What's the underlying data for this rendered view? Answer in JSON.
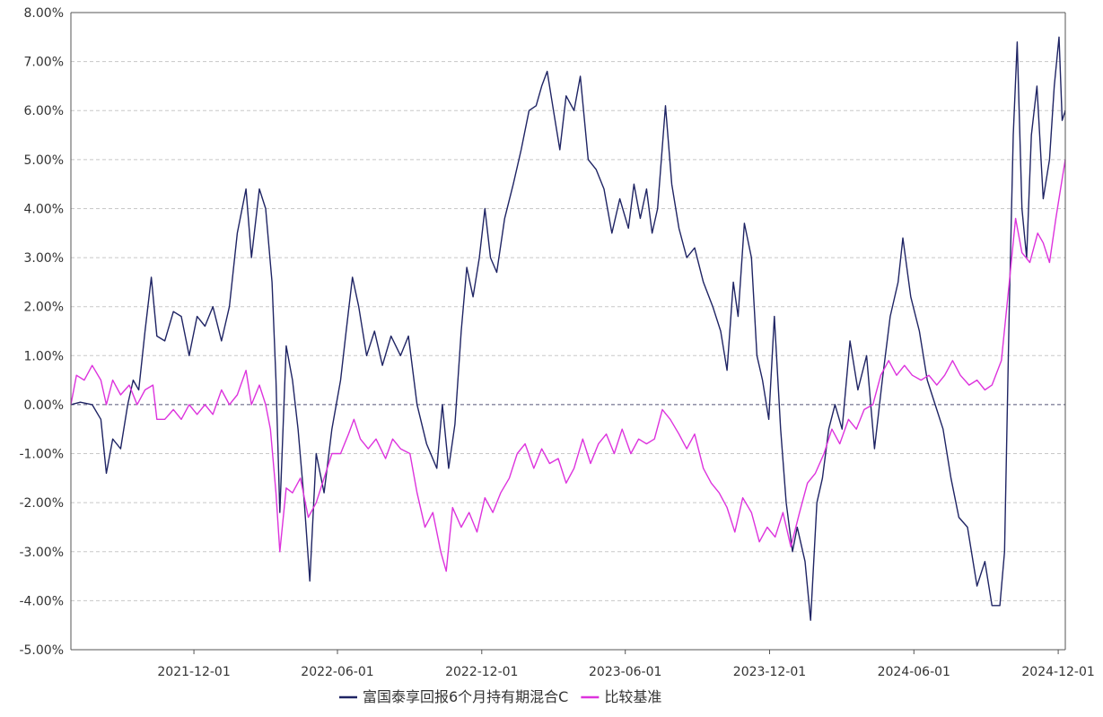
{
  "chart_data": {
    "type": "line",
    "title": "",
    "xlabel": "",
    "ylabel": "",
    "x_range": [
      "2021-06-28",
      "2024-12-10"
    ],
    "ylim": [
      -5,
      8
    ],
    "y_ticks": [
      -5,
      -4,
      -3,
      -2,
      -1,
      0,
      1,
      2,
      3,
      4,
      5,
      6,
      7,
      8
    ],
    "y_tick_labels": [
      "-5.00%",
      "-4.00%",
      "-3.00%",
      "-2.00%",
      "-1.00%",
      "0.00%",
      "1.00%",
      "2.00%",
      "3.00%",
      "4.00%",
      "5.00%",
      "6.00%",
      "7.00%",
      "8.00%"
    ],
    "x_ticks": [
      "2021-12-01",
      "2022-06-01",
      "2022-12-01",
      "2023-06-01",
      "2023-12-01",
      "2024-06-01",
      "2024-12-01"
    ],
    "x_tick_labels": [
      "2021-12-01",
      "2022-06-01",
      "2022-12-01",
      "2023-06-01",
      "2023-12-01",
      "2024-06-01",
      "2024-12-01"
    ],
    "grid": true,
    "legend_position": "bottom-center",
    "series": [
      {
        "name": "富国泰享回报6个月持有期混合C",
        "color": "#1f2464",
        "points": [
          [
            "2021-06-28",
            0.0
          ],
          [
            "2021-07-10",
            0.05
          ],
          [
            "2021-07-25",
            0.0
          ],
          [
            "2021-08-05",
            -0.3
          ],
          [
            "2021-08-12",
            -1.4
          ],
          [
            "2021-08-20",
            -0.7
          ],
          [
            "2021-08-30",
            -0.9
          ],
          [
            "2021-09-08",
            0.0
          ],
          [
            "2021-09-15",
            0.5
          ],
          [
            "2021-09-22",
            0.3
          ],
          [
            "2021-09-30",
            1.5
          ],
          [
            "2021-10-08",
            2.6
          ],
          [
            "2021-10-15",
            1.4
          ],
          [
            "2021-10-25",
            1.3
          ],
          [
            "2021-11-05",
            1.9
          ],
          [
            "2021-11-15",
            1.8
          ],
          [
            "2021-11-25",
            1.0
          ],
          [
            "2021-12-05",
            1.8
          ],
          [
            "2021-12-15",
            1.6
          ],
          [
            "2021-12-25",
            2.0
          ],
          [
            "2022-01-05",
            1.3
          ],
          [
            "2022-01-15",
            2.0
          ],
          [
            "2022-01-25",
            3.5
          ],
          [
            "2022-02-05",
            4.4
          ],
          [
            "2022-02-12",
            3.0
          ],
          [
            "2022-02-22",
            4.4
          ],
          [
            "2022-03-02",
            4.0
          ],
          [
            "2022-03-10",
            2.5
          ],
          [
            "2022-03-15",
            0.5
          ],
          [
            "2022-03-20",
            -2.2
          ],
          [
            "2022-03-28",
            1.2
          ],
          [
            "2022-04-05",
            0.5
          ],
          [
            "2022-04-12",
            -0.5
          ],
          [
            "2022-04-20",
            -2.0
          ],
          [
            "2022-04-27",
            -3.6
          ],
          [
            "2022-05-05",
            -1.0
          ],
          [
            "2022-05-15",
            -1.8
          ],
          [
            "2022-05-25",
            -0.5
          ],
          [
            "2022-06-05",
            0.5
          ],
          [
            "2022-06-12",
            1.5
          ],
          [
            "2022-06-20",
            2.6
          ],
          [
            "2022-06-28",
            2.0
          ],
          [
            "2022-07-08",
            1.0
          ],
          [
            "2022-07-18",
            1.5
          ],
          [
            "2022-07-28",
            0.8
          ],
          [
            "2022-08-08",
            1.4
          ],
          [
            "2022-08-20",
            1.0
          ],
          [
            "2022-08-30",
            1.4
          ],
          [
            "2022-09-10",
            0.0
          ],
          [
            "2022-09-22",
            -0.8
          ],
          [
            "2022-10-05",
            -1.3
          ],
          [
            "2022-10-12",
            0.0
          ],
          [
            "2022-10-20",
            -1.3
          ],
          [
            "2022-10-28",
            -0.4
          ],
          [
            "2022-11-05",
            1.5
          ],
          [
            "2022-11-12",
            2.8
          ],
          [
            "2022-11-20",
            2.2
          ],
          [
            "2022-11-28",
            3.0
          ],
          [
            "2022-12-05",
            4.0
          ],
          [
            "2022-12-12",
            3.0
          ],
          [
            "2022-12-20",
            2.7
          ],
          [
            "2022-12-30",
            3.8
          ],
          [
            "2023-01-10",
            4.5
          ],
          [
            "2023-01-20",
            5.2
          ],
          [
            "2023-01-30",
            6.0
          ],
          [
            "2023-02-08",
            6.1
          ],
          [
            "2023-02-15",
            6.5
          ],
          [
            "2023-02-22",
            6.8
          ],
          [
            "2023-03-02",
            6.0
          ],
          [
            "2023-03-10",
            5.2
          ],
          [
            "2023-03-18",
            6.3
          ],
          [
            "2023-03-28",
            6.0
          ],
          [
            "2023-04-05",
            6.7
          ],
          [
            "2023-04-15",
            5.0
          ],
          [
            "2023-04-25",
            4.8
          ],
          [
            "2023-05-05",
            4.4
          ],
          [
            "2023-05-15",
            3.5
          ],
          [
            "2023-05-25",
            4.2
          ],
          [
            "2023-06-05",
            3.6
          ],
          [
            "2023-06-12",
            4.5
          ],
          [
            "2023-06-20",
            3.8
          ],
          [
            "2023-06-28",
            4.4
          ],
          [
            "2023-07-05",
            3.5
          ],
          [
            "2023-07-12",
            4.0
          ],
          [
            "2023-07-22",
            6.1
          ],
          [
            "2023-07-30",
            4.5
          ],
          [
            "2023-08-08",
            3.6
          ],
          [
            "2023-08-18",
            3.0
          ],
          [
            "2023-08-28",
            3.2
          ],
          [
            "2023-09-08",
            2.5
          ],
          [
            "2023-09-20",
            2.0
          ],
          [
            "2023-09-30",
            1.5
          ],
          [
            "2023-10-08",
            0.7
          ],
          [
            "2023-10-16",
            2.5
          ],
          [
            "2023-10-22",
            1.8
          ],
          [
            "2023-10-30",
            3.7
          ],
          [
            "2023-11-08",
            3.0
          ],
          [
            "2023-11-15",
            1.0
          ],
          [
            "2023-11-22",
            0.5
          ],
          [
            "2023-11-30",
            -0.3
          ],
          [
            "2023-12-07",
            1.8
          ],
          [
            "2023-12-15",
            -0.5
          ],
          [
            "2023-12-22",
            -2.0
          ],
          [
            "2023-12-30",
            -3.0
          ],
          [
            "2024-01-05",
            -2.5
          ],
          [
            "2024-01-15",
            -3.2
          ],
          [
            "2024-01-22",
            -4.4
          ],
          [
            "2024-01-30",
            -2.0
          ],
          [
            "2024-02-06",
            -1.5
          ],
          [
            "2024-02-14",
            -0.5
          ],
          [
            "2024-02-22",
            0.0
          ],
          [
            "2024-03-02",
            -0.5
          ],
          [
            "2024-03-12",
            1.3
          ],
          [
            "2024-03-22",
            0.3
          ],
          [
            "2024-04-02",
            1.0
          ],
          [
            "2024-04-12",
            -0.9
          ],
          [
            "2024-04-22",
            0.5
          ],
          [
            "2024-05-02",
            1.8
          ],
          [
            "2024-05-12",
            2.5
          ],
          [
            "2024-05-18",
            3.4
          ],
          [
            "2024-05-28",
            2.2
          ],
          [
            "2024-06-08",
            1.5
          ],
          [
            "2024-06-18",
            0.5
          ],
          [
            "2024-06-28",
            0.0
          ],
          [
            "2024-07-08",
            -0.5
          ],
          [
            "2024-07-18",
            -1.5
          ],
          [
            "2024-07-28",
            -2.3
          ],
          [
            "2024-08-08",
            -2.5
          ],
          [
            "2024-08-20",
            -3.7
          ],
          [
            "2024-08-30",
            -3.2
          ],
          [
            "2024-09-08",
            -4.1
          ],
          [
            "2024-09-18",
            -4.1
          ],
          [
            "2024-09-24",
            -3.0
          ],
          [
            "2024-09-30",
            2.0
          ],
          [
            "2024-10-05",
            5.5
          ],
          [
            "2024-10-10",
            7.4
          ],
          [
            "2024-10-16",
            4.0
          ],
          [
            "2024-10-22",
            3.0
          ],
          [
            "2024-10-28",
            5.5
          ],
          [
            "2024-11-04",
            6.5
          ],
          [
            "2024-11-12",
            4.2
          ],
          [
            "2024-11-20",
            5.0
          ],
          [
            "2024-11-26",
            6.5
          ],
          [
            "2024-12-02",
            7.5
          ],
          [
            "2024-12-06",
            5.8
          ],
          [
            "2024-12-10",
            6.0
          ]
        ]
      },
      {
        "name": "比较基准",
        "color": "#dd33dd",
        "points": [
          [
            "2021-06-28",
            0.0
          ],
          [
            "2021-07-05",
            0.6
          ],
          [
            "2021-07-15",
            0.5
          ],
          [
            "2021-07-25",
            0.8
          ],
          [
            "2021-08-05",
            0.5
          ],
          [
            "2021-08-12",
            0.0
          ],
          [
            "2021-08-20",
            0.5
          ],
          [
            "2021-08-30",
            0.2
          ],
          [
            "2021-09-10",
            0.4
          ],
          [
            "2021-09-20",
            0.0
          ],
          [
            "2021-09-30",
            0.3
          ],
          [
            "2021-10-10",
            0.4
          ],
          [
            "2021-10-15",
            -0.3
          ],
          [
            "2021-10-25",
            -0.3
          ],
          [
            "2021-11-05",
            -0.1
          ],
          [
            "2021-11-15",
            -0.3
          ],
          [
            "2021-11-25",
            0.0
          ],
          [
            "2021-12-05",
            -0.2
          ],
          [
            "2021-12-15",
            0.0
          ],
          [
            "2021-12-25",
            -0.2
          ],
          [
            "2022-01-05",
            0.3
          ],
          [
            "2022-01-15",
            0.0
          ],
          [
            "2022-01-25",
            0.2
          ],
          [
            "2022-02-05",
            0.7
          ],
          [
            "2022-02-12",
            0.0
          ],
          [
            "2022-02-22",
            0.4
          ],
          [
            "2022-03-02",
            0.0
          ],
          [
            "2022-03-08",
            -0.5
          ],
          [
            "2022-03-15",
            -1.8
          ],
          [
            "2022-03-20",
            -3.0
          ],
          [
            "2022-03-28",
            -1.7
          ],
          [
            "2022-04-05",
            -1.8
          ],
          [
            "2022-04-15",
            -1.5
          ],
          [
            "2022-04-25",
            -2.3
          ],
          [
            "2022-05-05",
            -2.0
          ],
          [
            "2022-05-15",
            -1.5
          ],
          [
            "2022-05-25",
            -1.0
          ],
          [
            "2022-06-05",
            -1.0
          ],
          [
            "2022-06-15",
            -0.6
          ],
          [
            "2022-06-22",
            -0.3
          ],
          [
            "2022-06-30",
            -0.7
          ],
          [
            "2022-07-10",
            -0.9
          ],
          [
            "2022-07-20",
            -0.7
          ],
          [
            "2022-08-01",
            -1.1
          ],
          [
            "2022-08-10",
            -0.7
          ],
          [
            "2022-08-20",
            -0.9
          ],
          [
            "2022-09-01",
            -1.0
          ],
          [
            "2022-09-10",
            -1.8
          ],
          [
            "2022-09-20",
            -2.5
          ],
          [
            "2022-09-30",
            -2.2
          ],
          [
            "2022-10-10",
            -3.0
          ],
          [
            "2022-10-17",
            -3.4
          ],
          [
            "2022-10-25",
            -2.1
          ],
          [
            "2022-11-05",
            -2.5
          ],
          [
            "2022-11-15",
            -2.2
          ],
          [
            "2022-11-25",
            -2.6
          ],
          [
            "2022-12-05",
            -1.9
          ],
          [
            "2022-12-15",
            -2.2
          ],
          [
            "2022-12-25",
            -1.8
          ],
          [
            "2023-01-05",
            -1.5
          ],
          [
            "2023-01-15",
            -1.0
          ],
          [
            "2023-01-25",
            -0.8
          ],
          [
            "2023-02-05",
            -1.3
          ],
          [
            "2023-02-15",
            -0.9
          ],
          [
            "2023-02-25",
            -1.2
          ],
          [
            "2023-03-08",
            -1.1
          ],
          [
            "2023-03-18",
            -1.6
          ],
          [
            "2023-03-28",
            -1.3
          ],
          [
            "2023-04-08",
            -0.7
          ],
          [
            "2023-04-18",
            -1.2
          ],
          [
            "2023-04-28",
            -0.8
          ],
          [
            "2023-05-08",
            -0.6
          ],
          [
            "2023-05-18",
            -1.0
          ],
          [
            "2023-05-28",
            -0.5
          ],
          [
            "2023-06-08",
            -1.0
          ],
          [
            "2023-06-18",
            -0.7
          ],
          [
            "2023-06-28",
            -0.8
          ],
          [
            "2023-07-08",
            -0.7
          ],
          [
            "2023-07-18",
            -0.1
          ],
          [
            "2023-07-28",
            -0.3
          ],
          [
            "2023-08-08",
            -0.6
          ],
          [
            "2023-08-18",
            -0.9
          ],
          [
            "2023-08-28",
            -0.6
          ],
          [
            "2023-09-08",
            -1.3
          ],
          [
            "2023-09-18",
            -1.6
          ],
          [
            "2023-09-28",
            -1.8
          ],
          [
            "2023-10-08",
            -2.1
          ],
          [
            "2023-10-18",
            -2.6
          ],
          [
            "2023-10-28",
            -1.9
          ],
          [
            "2023-11-08",
            -2.2
          ],
          [
            "2023-11-18",
            -2.8
          ],
          [
            "2023-11-28",
            -2.5
          ],
          [
            "2023-12-08",
            -2.7
          ],
          [
            "2023-12-18",
            -2.2
          ],
          [
            "2023-12-28",
            -2.9
          ],
          [
            "2024-01-08",
            -2.2
          ],
          [
            "2024-01-18",
            -1.6
          ],
          [
            "2024-01-28",
            -1.4
          ],
          [
            "2024-02-08",
            -1.0
          ],
          [
            "2024-02-18",
            -0.5
          ],
          [
            "2024-02-28",
            -0.8
          ],
          [
            "2024-03-10",
            -0.3
          ],
          [
            "2024-03-20",
            -0.5
          ],
          [
            "2024-03-30",
            -0.1
          ],
          [
            "2024-04-10",
            0.0
          ],
          [
            "2024-04-20",
            0.6
          ],
          [
            "2024-04-30",
            0.9
          ],
          [
            "2024-05-10",
            0.6
          ],
          [
            "2024-05-20",
            0.8
          ],
          [
            "2024-05-30",
            0.6
          ],
          [
            "2024-06-10",
            0.5
          ],
          [
            "2024-06-20",
            0.6
          ],
          [
            "2024-06-30",
            0.4
          ],
          [
            "2024-07-10",
            0.6
          ],
          [
            "2024-07-20",
            0.9
          ],
          [
            "2024-07-30",
            0.6
          ],
          [
            "2024-08-10",
            0.4
          ],
          [
            "2024-08-20",
            0.5
          ],
          [
            "2024-08-30",
            0.3
          ],
          [
            "2024-09-08",
            0.4
          ],
          [
            "2024-09-20",
            0.9
          ],
          [
            "2024-09-30",
            2.5
          ],
          [
            "2024-10-08",
            3.8
          ],
          [
            "2024-10-16",
            3.1
          ],
          [
            "2024-10-26",
            2.9
          ],
          [
            "2024-11-05",
            3.5
          ],
          [
            "2024-11-12",
            3.3
          ],
          [
            "2024-11-20",
            2.9
          ],
          [
            "2024-11-28",
            3.8
          ],
          [
            "2024-12-03",
            4.3
          ],
          [
            "2024-12-08",
            4.8
          ],
          [
            "2024-12-10",
            5.0
          ]
        ]
      }
    ]
  }
}
